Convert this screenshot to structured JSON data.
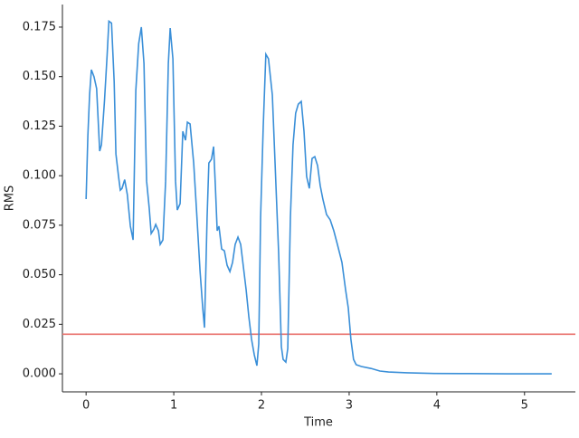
{
  "chart_data": {
    "type": "line",
    "xlabel": "Time",
    "ylabel": "RMS",
    "x": [
      0,
      0.02,
      0.04,
      0.06,
      0.09,
      0.12,
      0.155,
      0.175,
      0.21,
      0.24,
      0.26,
      0.29,
      0.32,
      0.34,
      0.37,
      0.39,
      0.41,
      0.44,
      0.47,
      0.505,
      0.536,
      0.567,
      0.6,
      0.63,
      0.66,
      0.69,
      0.72,
      0.742,
      0.773,
      0.794,
      0.825,
      0.845,
      0.876,
      0.907,
      0.938,
      0.959,
      0.99,
      1.02,
      1.04,
      1.072,
      1.103,
      1.134,
      1.155,
      1.186,
      1.227,
      1.258,
      1.3,
      1.33,
      1.35,
      1.38,
      1.4,
      1.43,
      1.454,
      1.474,
      1.495,
      1.515,
      1.546,
      1.577,
      1.608,
      1.64,
      1.67,
      1.7,
      1.732,
      1.763,
      1.794,
      1.825,
      1.856,
      1.887,
      1.918,
      1.948,
      1.969,
      1.99,
      2.02,
      2.05,
      2.08,
      2.124,
      2.155,
      2.196,
      2.227,
      2.247,
      2.278,
      2.3,
      2.33,
      2.36,
      2.39,
      2.42,
      2.454,
      2.485,
      2.515,
      2.546,
      2.577,
      2.608,
      2.64,
      2.67,
      2.7,
      2.742,
      2.784,
      2.825,
      2.866,
      2.918,
      2.959,
      2.99,
      3.02,
      3.05,
      3.08,
      3.14,
      3.25,
      3.35,
      3.45,
      3.66,
      3.97,
      4.38,
      4.8,
      5.31
    ],
    "series": [
      {
        "color": "#3a8fd8",
        "values": [
          0.0882,
          0.12,
          0.141,
          0.1535,
          0.15,
          0.144,
          0.1124,
          0.1156,
          0.138,
          0.161,
          0.178,
          0.177,
          0.1476,
          0.111,
          0.0996,
          0.0927,
          0.0936,
          0.098,
          0.0905,
          0.0745,
          0.0676,
          0.143,
          0.1667,
          0.175,
          0.1567,
          0.0973,
          0.0836,
          0.0708,
          0.073,
          0.0754,
          0.0722,
          0.0653,
          0.0676,
          0.0973,
          0.1567,
          0.1745,
          0.159,
          0.0973,
          0.0827,
          0.0859,
          0.1224,
          0.1179,
          0.127,
          0.1261,
          0.1064,
          0.0836,
          0.0516,
          0.0333,
          0.0233,
          0.079,
          0.1064,
          0.1083,
          0.1147,
          0.095,
          0.0722,
          0.0745,
          0.063,
          0.0621,
          0.0548,
          0.0516,
          0.0562,
          0.0653,
          0.069,
          0.0653,
          0.0539,
          0.0425,
          0.0288,
          0.0174,
          0.0096,
          0.0041,
          0.0151,
          0.079,
          0.1247,
          0.1613,
          0.159,
          0.1407,
          0.1064,
          0.0608,
          0.0137,
          0.0073,
          0.0059,
          0.0128,
          0.079,
          0.1156,
          0.1316,
          0.1361,
          0.1375,
          0.1224,
          0.0996,
          0.0936,
          0.1087,
          0.1096,
          0.1051,
          0.095,
          0.0882,
          0.0804,
          0.0777,
          0.0722,
          0.0653,
          0.0562,
          0.0425,
          0.0333,
          0.0174,
          0.0073,
          0.0046,
          0.0037,
          0.0027,
          0.0014,
          0.0009,
          0.0005,
          0.0002,
          0.0001,
          0,
          0
        ]
      }
    ],
    "hline": {
      "value": 0.02,
      "color": "#e8706b"
    },
    "xlim": [
      -0.27,
      5.58
    ],
    "xticks": [
      0,
      1,
      2,
      3,
      4,
      5
    ],
    "ylim": [
      -0.0091,
      0.1864
    ],
    "yticks": [
      {
        "value": 0,
        "label": "0.000"
      },
      {
        "value": 0.025,
        "label": "0.025"
      },
      {
        "value": 0.05,
        "label": "0.050"
      },
      {
        "value": 0.075,
        "label": "0.075"
      },
      {
        "value": 0.1,
        "label": "0.100"
      },
      {
        "value": 0.125,
        "label": "0.125"
      },
      {
        "value": 0.15,
        "label": "0.150"
      },
      {
        "value": 0.175,
        "label": "0.175"
      }
    ]
  }
}
